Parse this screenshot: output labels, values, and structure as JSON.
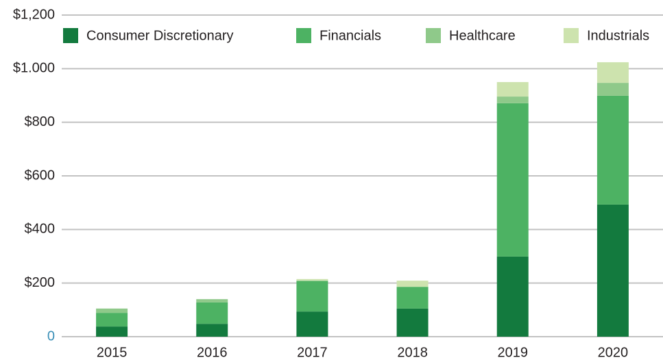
{
  "chart_data": {
    "type": "stacked_bar",
    "categories": [
      "2015",
      "2016",
      "2017",
      "2018",
      "2019",
      "2020"
    ],
    "series": [
      {
        "name": "Consumer Discretionary",
        "color": "#137a3e",
        "values": [
          38,
          48,
          94,
          105,
          299,
          493
        ]
      },
      {
        "name": "Financials",
        "color": "#4db263",
        "values": [
          51,
          80,
          113,
          81,
          572,
          406
        ]
      },
      {
        "name": "Healthcare",
        "color": "#8fc98a",
        "values": [
          16,
          12,
          3,
          0,
          25,
          48
        ]
      },
      {
        "name": "Industrials",
        "color": "#cde3ae",
        "values": [
          0,
          0,
          5,
          23,
          54,
          77
        ]
      }
    ],
    "ylim": [
      0,
      1200
    ],
    "yticks": [
      0,
      {
        "value": 200,
        "label": "$200"
      },
      {
        "value": 400,
        "label": "$400"
      },
      {
        "value": 600,
        "label": "$600"
      },
      {
        "value": 800,
        "label": "$800"
      },
      {
        "value": 1000,
        "label": "$1.000"
      },
      {
        "value": 1200,
        "label": "$1,200"
      }
    ],
    "grid": true,
    "legend": "top"
  }
}
